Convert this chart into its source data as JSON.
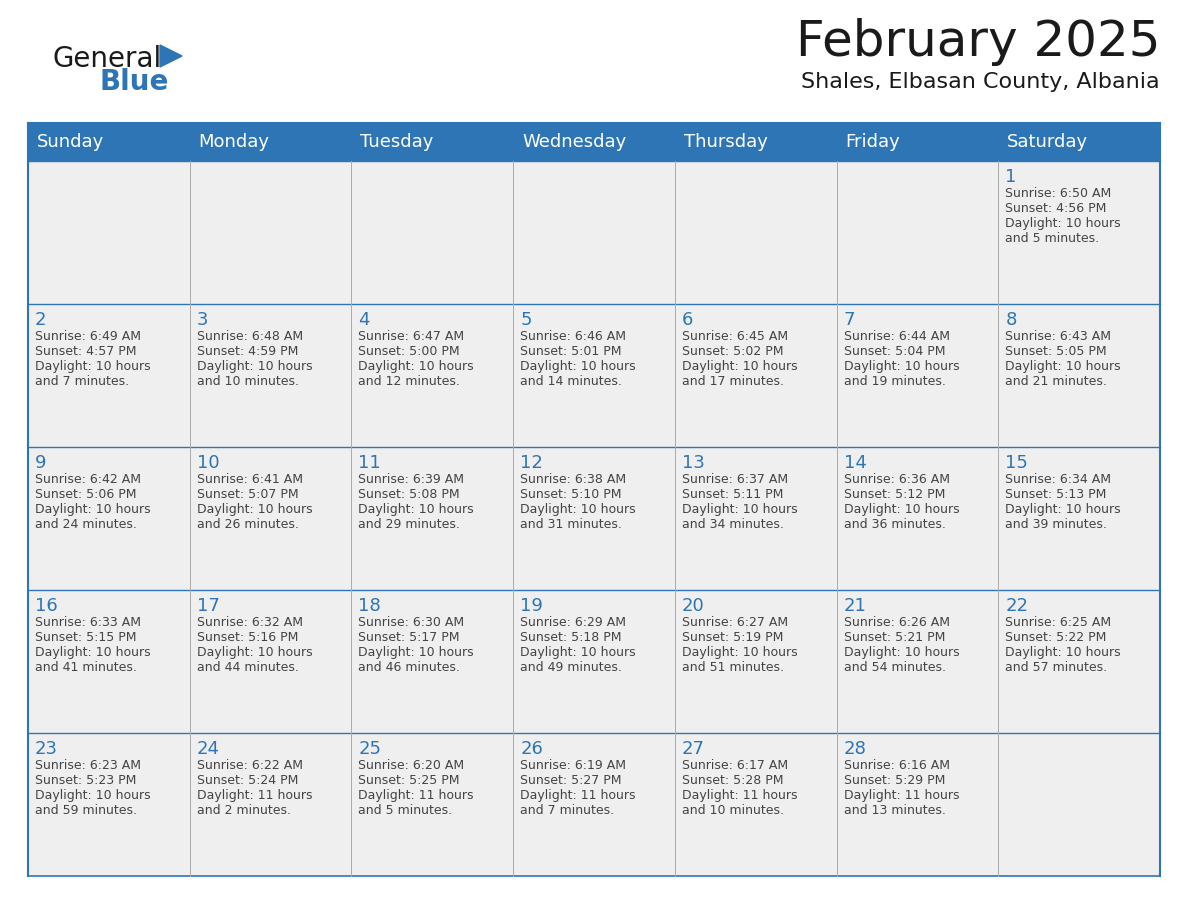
{
  "title": "February 2025",
  "subtitle": "Shales, Elbasan County, Albania",
  "header_bg": "#2E75B6",
  "header_text_color": "#FFFFFF",
  "cell_bg": "#EFEFEF",
  "day_number_color": "#2E75B6",
  "info_text_color": "#444444",
  "border_color": "#2E75B6",
  "grid_line_color": "#AAAAAA",
  "days_of_week": [
    "Sunday",
    "Monday",
    "Tuesday",
    "Wednesday",
    "Thursday",
    "Friday",
    "Saturday"
  ],
  "weeks": [
    [
      {
        "day": null,
        "info": null
      },
      {
        "day": null,
        "info": null
      },
      {
        "day": null,
        "info": null
      },
      {
        "day": null,
        "info": null
      },
      {
        "day": null,
        "info": null
      },
      {
        "day": null,
        "info": null
      },
      {
        "day": "1",
        "info": "Sunrise: 6:50 AM\nSunset: 4:56 PM\nDaylight: 10 hours\nand 5 minutes."
      }
    ],
    [
      {
        "day": "2",
        "info": "Sunrise: 6:49 AM\nSunset: 4:57 PM\nDaylight: 10 hours\nand 7 minutes."
      },
      {
        "day": "3",
        "info": "Sunrise: 6:48 AM\nSunset: 4:59 PM\nDaylight: 10 hours\nand 10 minutes."
      },
      {
        "day": "4",
        "info": "Sunrise: 6:47 AM\nSunset: 5:00 PM\nDaylight: 10 hours\nand 12 minutes."
      },
      {
        "day": "5",
        "info": "Sunrise: 6:46 AM\nSunset: 5:01 PM\nDaylight: 10 hours\nand 14 minutes."
      },
      {
        "day": "6",
        "info": "Sunrise: 6:45 AM\nSunset: 5:02 PM\nDaylight: 10 hours\nand 17 minutes."
      },
      {
        "day": "7",
        "info": "Sunrise: 6:44 AM\nSunset: 5:04 PM\nDaylight: 10 hours\nand 19 minutes."
      },
      {
        "day": "8",
        "info": "Sunrise: 6:43 AM\nSunset: 5:05 PM\nDaylight: 10 hours\nand 21 minutes."
      }
    ],
    [
      {
        "day": "9",
        "info": "Sunrise: 6:42 AM\nSunset: 5:06 PM\nDaylight: 10 hours\nand 24 minutes."
      },
      {
        "day": "10",
        "info": "Sunrise: 6:41 AM\nSunset: 5:07 PM\nDaylight: 10 hours\nand 26 minutes."
      },
      {
        "day": "11",
        "info": "Sunrise: 6:39 AM\nSunset: 5:08 PM\nDaylight: 10 hours\nand 29 minutes."
      },
      {
        "day": "12",
        "info": "Sunrise: 6:38 AM\nSunset: 5:10 PM\nDaylight: 10 hours\nand 31 minutes."
      },
      {
        "day": "13",
        "info": "Sunrise: 6:37 AM\nSunset: 5:11 PM\nDaylight: 10 hours\nand 34 minutes."
      },
      {
        "day": "14",
        "info": "Sunrise: 6:36 AM\nSunset: 5:12 PM\nDaylight: 10 hours\nand 36 minutes."
      },
      {
        "day": "15",
        "info": "Sunrise: 6:34 AM\nSunset: 5:13 PM\nDaylight: 10 hours\nand 39 minutes."
      }
    ],
    [
      {
        "day": "16",
        "info": "Sunrise: 6:33 AM\nSunset: 5:15 PM\nDaylight: 10 hours\nand 41 minutes."
      },
      {
        "day": "17",
        "info": "Sunrise: 6:32 AM\nSunset: 5:16 PM\nDaylight: 10 hours\nand 44 minutes."
      },
      {
        "day": "18",
        "info": "Sunrise: 6:30 AM\nSunset: 5:17 PM\nDaylight: 10 hours\nand 46 minutes."
      },
      {
        "day": "19",
        "info": "Sunrise: 6:29 AM\nSunset: 5:18 PM\nDaylight: 10 hours\nand 49 minutes."
      },
      {
        "day": "20",
        "info": "Sunrise: 6:27 AM\nSunset: 5:19 PM\nDaylight: 10 hours\nand 51 minutes."
      },
      {
        "day": "21",
        "info": "Sunrise: 6:26 AM\nSunset: 5:21 PM\nDaylight: 10 hours\nand 54 minutes."
      },
      {
        "day": "22",
        "info": "Sunrise: 6:25 AM\nSunset: 5:22 PM\nDaylight: 10 hours\nand 57 minutes."
      }
    ],
    [
      {
        "day": "23",
        "info": "Sunrise: 6:23 AM\nSunset: 5:23 PM\nDaylight: 10 hours\nand 59 minutes."
      },
      {
        "day": "24",
        "info": "Sunrise: 6:22 AM\nSunset: 5:24 PM\nDaylight: 11 hours\nand 2 minutes."
      },
      {
        "day": "25",
        "info": "Sunrise: 6:20 AM\nSunset: 5:25 PM\nDaylight: 11 hours\nand 5 minutes."
      },
      {
        "day": "26",
        "info": "Sunrise: 6:19 AM\nSunset: 5:27 PM\nDaylight: 11 hours\nand 7 minutes."
      },
      {
        "day": "27",
        "info": "Sunrise: 6:17 AM\nSunset: 5:28 PM\nDaylight: 11 hours\nand 10 minutes."
      },
      {
        "day": "28",
        "info": "Sunrise: 6:16 AM\nSunset: 5:29 PM\nDaylight: 11 hours\nand 13 minutes."
      },
      {
        "day": null,
        "info": null
      }
    ]
  ],
  "logo_text_general": "General",
  "logo_text_blue": "Blue",
  "logo_color_general": "#1a1a1a",
  "logo_color_blue": "#2E75B6",
  "logo_triangle_color": "#2E75B6",
  "title_fontsize": 36,
  "subtitle_fontsize": 16,
  "header_fontsize": 13,
  "day_num_fontsize": 13,
  "info_fontsize": 9
}
